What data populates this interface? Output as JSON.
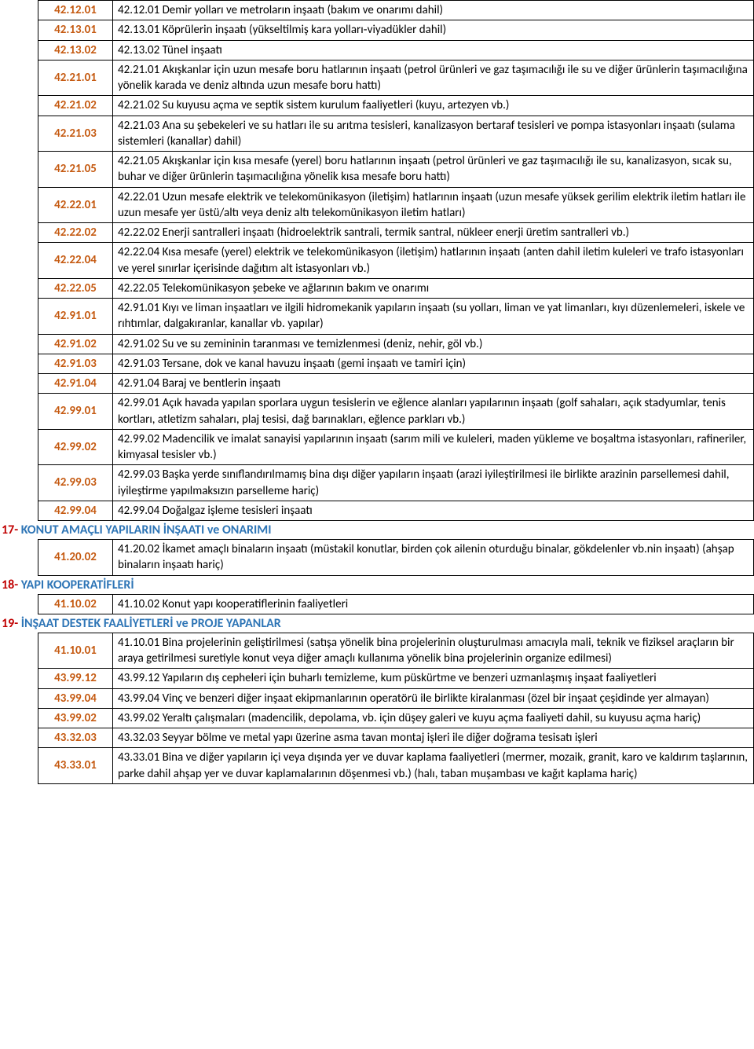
{
  "colors": {
    "code_text": "#c55a11",
    "header_red": "#c00000",
    "header_blue": "#2e75b6",
    "black": "#000000"
  },
  "section1_rows": [
    {
      "code": "42.12.01",
      "desc": "42.12.01 Demir yolları ve metroların inşaatı (bakım ve onarımı dahil)"
    },
    {
      "code": "42.13.01",
      "desc": "42.13.01 Köprülerin inşaatı (yükseltilmiş kara yolları‑viyadükler dahil)"
    },
    {
      "code": "42.13.02",
      "desc": "42.13.02  Tünel inşaatı"
    },
    {
      "code": "42.21.01",
      "desc": "42.21.01 Akışkanlar için uzun mesafe boru hatlarının inşaatı (petrol ürünleri ve gaz taşımacılığı ile su ve diğer ürünlerin taşımacılığına yönelik karada ve deniz altında uzun mesafe boru hattı)"
    },
    {
      "code": "42.21.02",
      "desc": "42.21.02 Su kuyusu açma ve septik sistem kurulum faaliyetleri (kuyu, artezyen vb.)"
    },
    {
      "code": "42.21.03",
      "desc": "42.21.03 Ana su şebekeleri ve su hatları ile su arıtma tesisleri, kanalizasyon bertaraf tesisleri ve pompa istasyonları inşaatı (sulama sistemleri (kanallar) dahil)"
    },
    {
      "code": "42.21.05",
      "desc": "42.21.05 Akışkanlar için kısa mesafe (yerel) boru hatlarının inşaatı (petrol ürünleri ve gaz taşımacılığı ile su, kanalizasyon, sıcak su, buhar ve diğer ürünlerin taşımacılığına yönelik kısa mesafe boru hattı)"
    },
    {
      "code": "42.22.01",
      "desc": "42.22.01 Uzun mesafe elektrik ve telekomünikasyon (iletişim) hatlarının inşaatı (uzun mesafe yüksek gerilim elektrik iletim hatları ile uzun mesafe yer üstü/altı veya deniz altı telekomünikasyon iletim hatları)"
    },
    {
      "code": "42.22.02",
      "desc": "42.22.02  Enerji santralleri inşaatı (hidroelektrik santrali, termik santral, nükleer enerji üretim santralleri vb.)"
    },
    {
      "code": "42.22.04",
      "desc": "42.22.04  Kısa mesafe (yerel) elektrik ve telekomünikasyon (iletişim) hatlarının inşaatı (anten dahil iletim kuleleri ve trafo istasyonları ve yerel sınırlar içerisinde dağıtım alt istasyonları vb.)"
    },
    {
      "code": "42.22.05",
      "desc": "42.22.05  Telekomünikasyon şebeke ve ağlarının bakım ve onarımı"
    },
    {
      "code": "42.91.01",
      "desc": "42.91.01  Kıyı ve liman inşaatları ve ilgili hidromekanik yapıların inşaatı (su yolları, liman ve yat limanları, kıyı düzenlemeleri, iskele ve rıhtımlar, dalgakıranlar, kanallar vb. yapılar)"
    },
    {
      "code": "42.91.02",
      "desc": "42.91.02  Su ve su zemininin taranması ve temizlenmesi (deniz, nehir, göl vb.)"
    },
    {
      "code": "42.91.03",
      "desc": "42.91.03  Tersane, dok ve kanal havuzu inşaatı (gemi inşaatı ve tamiri için)"
    },
    {
      "code": "42.91.04",
      "desc": "42.91.04  Baraj ve bentlerin inşaatı"
    },
    {
      "code": "42.99.01",
      "desc": "42.99.01 Açık havada yapılan sporlara uygun tesislerin ve eğlence alanları yapılarının inşaatı (golf sahaları, açık stadyumlar, tenis kortları, atletizm sahaları, plaj tesisi, dağ barınakları, eğlence parkları vb.)"
    },
    {
      "code": "42.99.02",
      "desc": "42.99.02  Madencilik ve imalat sanayisi yapılarının inşaatı (sarım mili ve kuleleri, maden yükleme ve boşaltma istasyonları, rafineriler, kimyasal tesisler vb.)"
    },
    {
      "code": "42.99.03",
      "desc": "42.99.03  Başka yerde sınıflandırılmamış bina dışı diğer yapıların inşaatı (arazi iyileştirilmesi ile birlikte arazinin parsellemesi dahil, iyileştirme yapılmaksızın parselleme hariç)"
    },
    {
      "code": "42.99.04",
      "desc": "42.99.04  Doğalgaz işleme tesisleri inşaatı"
    }
  ],
  "h17": {
    "num": "17- ",
    "text": "KONUT AMAÇLI YAPILARIN İNŞAATI ve ONARIMI"
  },
  "section17_rows": [
    {
      "code": "41.20.02",
      "desc": "41.20.02  İkamet amaçlı binaların inşaatı (müstakil konutlar, birden çok ailenin oturduğu binalar, gökdelenler vb.nin inşaatı) (ahşap binaların inşaatı hariç)"
    }
  ],
  "h18": {
    "num": "18- ",
    "text": "YAPI KOOPERATİFLERİ"
  },
  "section18_rows": [
    {
      "code": "41.10.02",
      "desc": "41.10.02  Konut yapı kooperatiflerinin faaliyetleri"
    }
  ],
  "h19": {
    "num": "19- ",
    "text": " İNŞAAT DESTEK FAALİYETLERİ ve PROJE YAPANLAR"
  },
  "section19_rows": [
    {
      "code": "41.10.01",
      "desc": "41.10.01  Bina projelerinin geliştirilmesi (satışa yönelik bina projelerinin oluşturulması amacıyla mali, teknik ve fiziksel araçların bir araya getirilmesi suretiyle konut veya diğer amaçlı kullanıma yönelik bina projelerinin organize edilmesi)"
    },
    {
      "code": "43.99.12",
      "desc": "43.99.12  Yapıların dış cepheleri için buharlı temizleme, kum püskürtme ve benzeri uzmanlaşmış inşaat faaliyetleri"
    },
    {
      "code": "43.99.04",
      "desc": "43.99.04  Vinç ve benzeri diğer inşaat ekipmanlarının operatörü ile birlikte kiralanması (özel bir inşaat çeşidinde yer almayan)"
    },
    {
      "code": "43.99.02",
      "desc": "43.99.02  Yeraltı çalışmaları (madencilik, depolama, vb. için düşey galeri ve kuyu açma faaliyeti dahil, su kuyusu açma hariç)"
    },
    {
      "code": "43.32.03",
      "desc": "43.32.03  Seyyar bölme ve metal yapı üzerine asma tavan montaj işleri ile diğer doğrama tesisatı işleri"
    },
    {
      "code": "43.33.01",
      "desc": "43.33.01  Bina ve diğer yapıların içi veya dışında yer ve duvar kaplama faaliyetleri (mermer, mozaik, granit, karo ve kaldırım taşlarının, parke dahil ahşap yer ve duvar kaplamalarının döşenmesi vb.) (halı, taban muşambası ve kağıt kaplama hariç)"
    }
  ]
}
